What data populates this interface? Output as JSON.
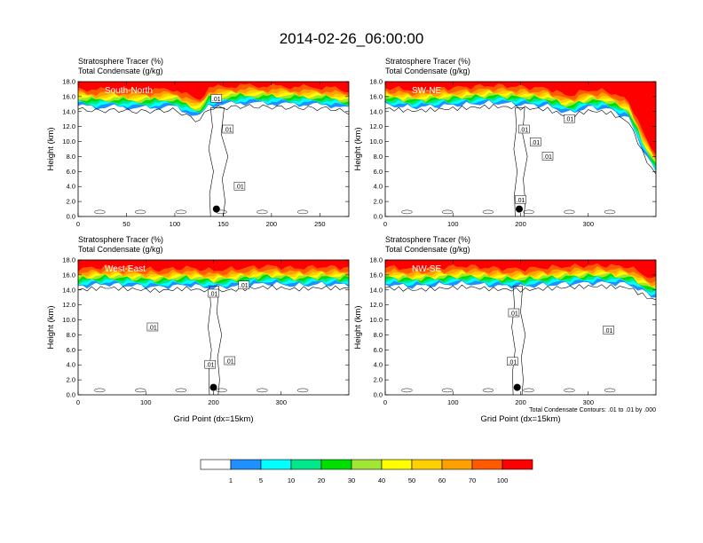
{
  "title": "2014-02-26_06:00:00",
  "colorbar": {
    "levels": [
      "1",
      "5",
      "10",
      "20",
      "30",
      "40",
      "50",
      "60",
      "70",
      "100"
    ],
    "colors": [
      "#ffffff",
      "#1e90ff",
      "#00ffff",
      "#00e88a",
      "#00e000",
      "#a0e632",
      "#ffff00",
      "#ffd000",
      "#ffa000",
      "#ff5a00",
      "#ff0000"
    ]
  },
  "chart_data": [
    {
      "type": "heatmap",
      "id": "south-north",
      "panel_label": "South-North",
      "subtitle1": "Stratosphere Tracer   (%)",
      "subtitle2": "Total Condensate   (g/kg)",
      "ylabel": "Height (km)",
      "xlabel": "",
      "xlim": [
        0,
        280
      ],
      "ylim": [
        0,
        18
      ],
      "xticks": [
        "0",
        "50",
        "100",
        "150",
        "200",
        "250"
      ],
      "xtick_values": [
        0,
        50,
        100,
        150,
        200,
        250
      ],
      "yticks": [
        "0.0",
        "2.0",
        "4.0",
        "6.0",
        "8.0",
        "10.0",
        "12.0",
        "14.0",
        "16.0",
        "18.0"
      ],
      "tropopause_km": [
        [
          0,
          15.2
        ],
        [
          20,
          15.0
        ],
        [
          40,
          15.1
        ],
        [
          60,
          14.9
        ],
        [
          80,
          15.0
        ],
        [
          100,
          15.1
        ],
        [
          115,
          14.2
        ],
        [
          125,
          13.6
        ],
        [
          135,
          15.3
        ],
        [
          150,
          15.4
        ],
        [
          170,
          15.6
        ],
        [
          200,
          15.5
        ],
        [
          230,
          15.4
        ],
        [
          260,
          15.3
        ],
        [
          280,
          14.8
        ]
      ],
      "contour_labels": [
        [
          ".01",
          143,
          15.7
        ],
        [
          ".01",
          155,
          11.6
        ],
        [
          ".01",
          167,
          4.0
        ]
      ],
      "marker": [
        143,
        1.0
      ]
    },
    {
      "type": "heatmap",
      "id": "sw-ne",
      "panel_label": "SW-NE",
      "subtitle1": "Stratosphere Tracer   (%)",
      "subtitle2": "Total Condensate   (g/kg)",
      "ylabel": "Height (km)",
      "xlabel": "",
      "xlim": [
        0,
        400
      ],
      "ylim": [
        0,
        18
      ],
      "xticks": [
        "0",
        "100",
        "200",
        "300"
      ],
      "xtick_values": [
        0,
        100,
        200,
        300
      ],
      "yticks": [
        "0.0",
        "2.0",
        "4.0",
        "6.0",
        "8.0",
        "10.0",
        "12.0",
        "14.0",
        "16.0",
        "18.0"
      ],
      "tropopause_km": [
        [
          0,
          15.3
        ],
        [
          40,
          15.0
        ],
        [
          80,
          15.2
        ],
        [
          120,
          15.4
        ],
        [
          160,
          15.6
        ],
        [
          200,
          15.4
        ],
        [
          240,
          15.2
        ],
        [
          270,
          14.2
        ],
        [
          300,
          15.0
        ],
        [
          330,
          14.8
        ],
        [
          360,
          13.5
        ],
        [
          385,
          8.5
        ],
        [
          400,
          6.5
        ]
      ],
      "contour_labels": [
        [
          ".01",
          205,
          11.6
        ],
        [
          ".01",
          222,
          9.9
        ],
        [
          ".01",
          240,
          8.0
        ],
        [
          ".01",
          272,
          13.0
        ],
        [
          ".01",
          200,
          2.2
        ]
      ],
      "marker": [
        198,
        1.0
      ]
    },
    {
      "type": "heatmap",
      "id": "west-east",
      "panel_label": "West-East",
      "subtitle1": "Stratosphere Tracer   (%)",
      "subtitle2": "Total Condensate   (g/kg)",
      "ylabel": "Height (km)",
      "xlabel": "Grid Point (dx=15km)",
      "xlim": [
        0,
        400
      ],
      "ylim": [
        0,
        18
      ],
      "xticks": [
        "0",
        "100",
        "200",
        "300"
      ],
      "xtick_values": [
        0,
        100,
        200,
        300
      ],
      "yticks": [
        "0.0",
        "2.0",
        "4.0",
        "6.0",
        "8.0",
        "10.0",
        "12.0",
        "14.0",
        "16.0",
        "18.0"
      ],
      "tropopause_km": [
        [
          0,
          14.9
        ],
        [
          40,
          15.2
        ],
        [
          80,
          15.0
        ],
        [
          120,
          14.8
        ],
        [
          160,
          15.1
        ],
        [
          200,
          14.7
        ],
        [
          240,
          15.0
        ],
        [
          280,
          15.3
        ],
        [
          320,
          15.0
        ],
        [
          360,
          15.2
        ],
        [
          400,
          15.1
        ]
      ],
      "contour_labels": [
        [
          ".01",
          200,
          13.5
        ],
        [
          ".01",
          245,
          14.6
        ],
        [
          ".01",
          110,
          9.0
        ],
        [
          ".01",
          195,
          4.0
        ],
        [
          ".01",
          224,
          4.5
        ]
      ],
      "marker": [
        200,
        1.0
      ]
    },
    {
      "type": "heatmap",
      "id": "nw-se",
      "panel_label": "NW-SE",
      "subtitle1": "Stratosphere Tracer   (%)",
      "subtitle2": "Total Condensate   (g/kg)",
      "ylabel": "Height (km)",
      "xlabel": "Grid Point (dx=15km)",
      "xlim": [
        0,
        400
      ],
      "ylim": [
        0,
        18
      ],
      "xticks": [
        "0",
        "100",
        "200",
        "300"
      ],
      "xtick_values": [
        0,
        100,
        200,
        300
      ],
      "yticks": [
        "0.0",
        "2.0",
        "4.0",
        "6.0",
        "8.0",
        "10.0",
        "12.0",
        "14.0",
        "16.0",
        "18.0"
      ],
      "tropopause_km": [
        [
          0,
          15.2
        ],
        [
          40,
          14.9
        ],
        [
          80,
          15.1
        ],
        [
          120,
          15.3
        ],
        [
          160,
          15.0
        ],
        [
          200,
          14.9
        ],
        [
          240,
          15.1
        ],
        [
          280,
          15.3
        ],
        [
          320,
          15.4
        ],
        [
          360,
          15.2
        ],
        [
          385,
          14.0
        ],
        [
          400,
          13.5
        ]
      ],
      "contour_labels": [
        [
          ".01",
          190,
          10.9
        ],
        [
          ".01",
          330,
          8.6
        ],
        [
          ".01",
          188,
          4.4
        ]
      ],
      "marker": [
        195,
        1.0
      ],
      "note": "Total Condensate Contours: .01 to .01 by .000"
    }
  ]
}
